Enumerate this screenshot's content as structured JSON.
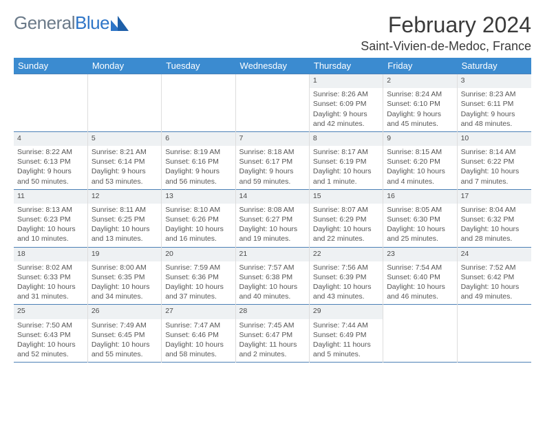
{
  "logo": {
    "text1": "General",
    "text2": "Blue"
  },
  "header": {
    "month": "February 2024",
    "location": "Saint-Vivien-de-Medoc, France"
  },
  "colors": {
    "header_bg": "#3b8bd0",
    "header_text": "#ffffff",
    "dayrow_bg": "#eef1f3",
    "border_week": "#4a7fb5",
    "border_col": "#dddddd",
    "body_text": "#555555",
    "title_text": "#3a3a3a",
    "logo_gray": "#6b7a89",
    "logo_blue": "#2e75c7"
  },
  "weekdays": [
    "Sunday",
    "Monday",
    "Tuesday",
    "Wednesday",
    "Thursday",
    "Friday",
    "Saturday"
  ],
  "weeks": [
    [
      null,
      null,
      null,
      null,
      {
        "d": "1",
        "sr": "Sunrise: 8:26 AM",
        "ss": "Sunset: 6:09 PM",
        "dl": "Daylight: 9 hours and 42 minutes."
      },
      {
        "d": "2",
        "sr": "Sunrise: 8:24 AM",
        "ss": "Sunset: 6:10 PM",
        "dl": "Daylight: 9 hours and 45 minutes."
      },
      {
        "d": "3",
        "sr": "Sunrise: 8:23 AM",
        "ss": "Sunset: 6:11 PM",
        "dl": "Daylight: 9 hours and 48 minutes."
      }
    ],
    [
      {
        "d": "4",
        "sr": "Sunrise: 8:22 AM",
        "ss": "Sunset: 6:13 PM",
        "dl": "Daylight: 9 hours and 50 minutes."
      },
      {
        "d": "5",
        "sr": "Sunrise: 8:21 AM",
        "ss": "Sunset: 6:14 PM",
        "dl": "Daylight: 9 hours and 53 minutes."
      },
      {
        "d": "6",
        "sr": "Sunrise: 8:19 AM",
        "ss": "Sunset: 6:16 PM",
        "dl": "Daylight: 9 hours and 56 minutes."
      },
      {
        "d": "7",
        "sr": "Sunrise: 8:18 AM",
        "ss": "Sunset: 6:17 PM",
        "dl": "Daylight: 9 hours and 59 minutes."
      },
      {
        "d": "8",
        "sr": "Sunrise: 8:17 AM",
        "ss": "Sunset: 6:19 PM",
        "dl": "Daylight: 10 hours and 1 minute."
      },
      {
        "d": "9",
        "sr": "Sunrise: 8:15 AM",
        "ss": "Sunset: 6:20 PM",
        "dl": "Daylight: 10 hours and 4 minutes."
      },
      {
        "d": "10",
        "sr": "Sunrise: 8:14 AM",
        "ss": "Sunset: 6:22 PM",
        "dl": "Daylight: 10 hours and 7 minutes."
      }
    ],
    [
      {
        "d": "11",
        "sr": "Sunrise: 8:13 AM",
        "ss": "Sunset: 6:23 PM",
        "dl": "Daylight: 10 hours and 10 minutes."
      },
      {
        "d": "12",
        "sr": "Sunrise: 8:11 AM",
        "ss": "Sunset: 6:25 PM",
        "dl": "Daylight: 10 hours and 13 minutes."
      },
      {
        "d": "13",
        "sr": "Sunrise: 8:10 AM",
        "ss": "Sunset: 6:26 PM",
        "dl": "Daylight: 10 hours and 16 minutes."
      },
      {
        "d": "14",
        "sr": "Sunrise: 8:08 AM",
        "ss": "Sunset: 6:27 PM",
        "dl": "Daylight: 10 hours and 19 minutes."
      },
      {
        "d": "15",
        "sr": "Sunrise: 8:07 AM",
        "ss": "Sunset: 6:29 PM",
        "dl": "Daylight: 10 hours and 22 minutes."
      },
      {
        "d": "16",
        "sr": "Sunrise: 8:05 AM",
        "ss": "Sunset: 6:30 PM",
        "dl": "Daylight: 10 hours and 25 minutes."
      },
      {
        "d": "17",
        "sr": "Sunrise: 8:04 AM",
        "ss": "Sunset: 6:32 PM",
        "dl": "Daylight: 10 hours and 28 minutes."
      }
    ],
    [
      {
        "d": "18",
        "sr": "Sunrise: 8:02 AM",
        "ss": "Sunset: 6:33 PM",
        "dl": "Daylight: 10 hours and 31 minutes."
      },
      {
        "d": "19",
        "sr": "Sunrise: 8:00 AM",
        "ss": "Sunset: 6:35 PM",
        "dl": "Daylight: 10 hours and 34 minutes."
      },
      {
        "d": "20",
        "sr": "Sunrise: 7:59 AM",
        "ss": "Sunset: 6:36 PM",
        "dl": "Daylight: 10 hours and 37 minutes."
      },
      {
        "d": "21",
        "sr": "Sunrise: 7:57 AM",
        "ss": "Sunset: 6:38 PM",
        "dl": "Daylight: 10 hours and 40 minutes."
      },
      {
        "d": "22",
        "sr": "Sunrise: 7:56 AM",
        "ss": "Sunset: 6:39 PM",
        "dl": "Daylight: 10 hours and 43 minutes."
      },
      {
        "d": "23",
        "sr": "Sunrise: 7:54 AM",
        "ss": "Sunset: 6:40 PM",
        "dl": "Daylight: 10 hours and 46 minutes."
      },
      {
        "d": "24",
        "sr": "Sunrise: 7:52 AM",
        "ss": "Sunset: 6:42 PM",
        "dl": "Daylight: 10 hours and 49 minutes."
      }
    ],
    [
      {
        "d": "25",
        "sr": "Sunrise: 7:50 AM",
        "ss": "Sunset: 6:43 PM",
        "dl": "Daylight: 10 hours and 52 minutes."
      },
      {
        "d": "26",
        "sr": "Sunrise: 7:49 AM",
        "ss": "Sunset: 6:45 PM",
        "dl": "Daylight: 10 hours and 55 minutes."
      },
      {
        "d": "27",
        "sr": "Sunrise: 7:47 AM",
        "ss": "Sunset: 6:46 PM",
        "dl": "Daylight: 10 hours and 58 minutes."
      },
      {
        "d": "28",
        "sr": "Sunrise: 7:45 AM",
        "ss": "Sunset: 6:47 PM",
        "dl": "Daylight: 11 hours and 2 minutes."
      },
      {
        "d": "29",
        "sr": "Sunrise: 7:44 AM",
        "ss": "Sunset: 6:49 PM",
        "dl": "Daylight: 11 hours and 5 minutes."
      },
      null,
      null
    ]
  ]
}
